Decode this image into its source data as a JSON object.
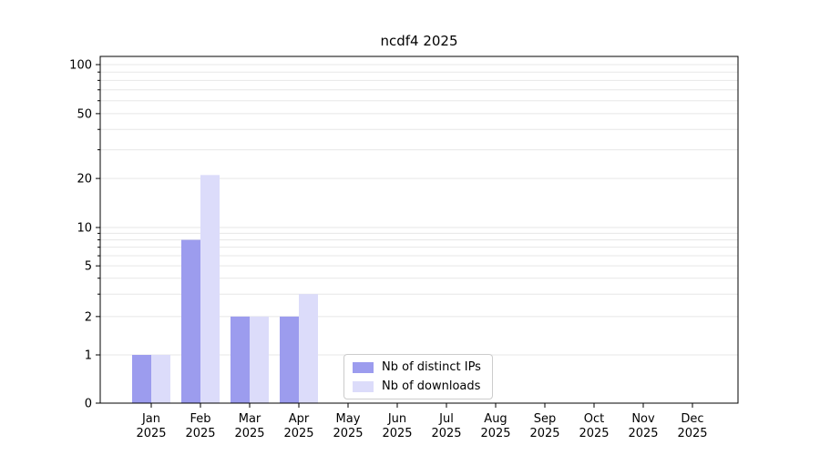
{
  "chart_data": {
    "type": "bar",
    "title": "ncdf4 2025",
    "categories": [
      "Jan 2025",
      "Feb 2025",
      "Mar 2025",
      "Apr 2025",
      "May 2025",
      "Jun 2025",
      "Jul 2025",
      "Aug 2025",
      "Sep 2025",
      "Oct 2025",
      "Nov 2025",
      "Dec 2025"
    ],
    "series": [
      {
        "name": "Nb of distinct IPs",
        "color": "#9c9cee",
        "values": [
          1,
          8,
          2,
          2,
          0,
          0,
          0,
          0,
          0,
          0,
          0,
          0
        ]
      },
      {
        "name": "Nb of downloads",
        "color": "#dcdcfa",
        "values": [
          1,
          21,
          2,
          3,
          0,
          0,
          0,
          0,
          0,
          0,
          0,
          0
        ]
      }
    ],
    "yscale": "symlog",
    "yticks": [
      0,
      1,
      2,
      5,
      10,
      20,
      50,
      100
    ],
    "grid_values": [
      1,
      2,
      3,
      4,
      5,
      6,
      7,
      8,
      9,
      10,
      20,
      30,
      40,
      50,
      60,
      70,
      80,
      90,
      100
    ],
    "ylim": [
      0,
      130
    ],
    "grid": true,
    "legend_position": "lower center",
    "colors": {
      "grid": "#e7e7e7",
      "axis": "#000000",
      "background": "#ffffff"
    }
  }
}
